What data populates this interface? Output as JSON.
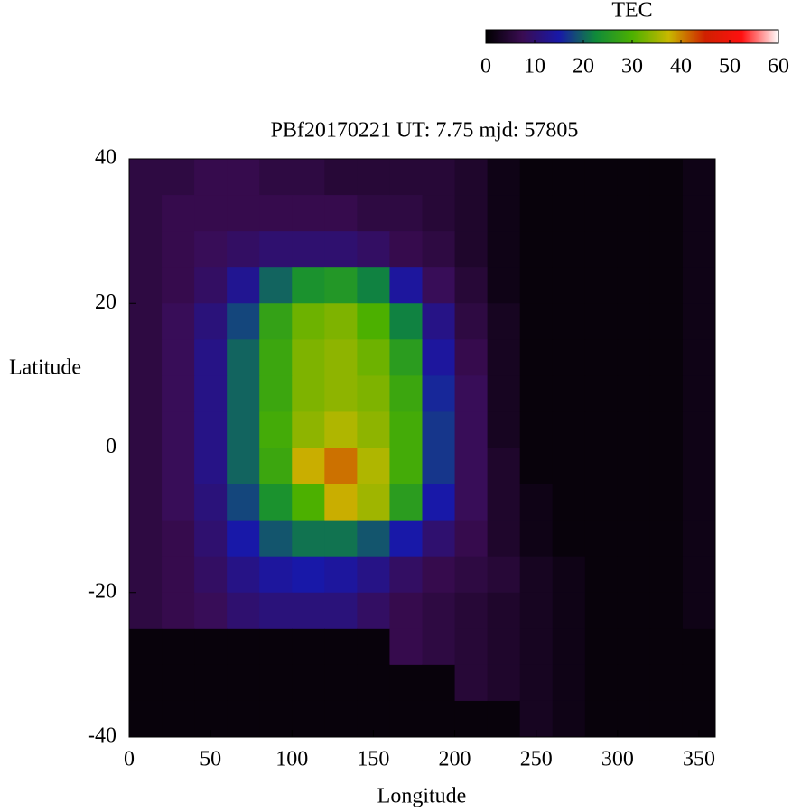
{
  "chart_data": {
    "type": "heatmap",
    "title": "PBf20170221  UT: 7.75  mjd: 57805",
    "xlabel": "Longitude",
    "ylabel": "Latitude",
    "colorbar_label": "TEC",
    "x": [
      10,
      30,
      50,
      70,
      90,
      110,
      130,
      150,
      170,
      190,
      210,
      230,
      250,
      270,
      290,
      310,
      330,
      350
    ],
    "y": [
      37.5,
      32.5,
      27.5,
      22.5,
      17.5,
      12.5,
      7.5,
      2.5,
      -2.5,
      -7.5,
      -12.5,
      -17.5,
      -22.5,
      -27.5,
      -32.5,
      -37.5
    ],
    "z": [
      [
        6,
        6,
        7,
        7,
        6,
        6,
        5,
        5,
        5,
        5,
        4,
        2,
        1,
        1,
        1,
        1,
        1,
        2
      ],
      [
        6,
        7,
        7,
        7,
        7,
        7,
        7,
        6,
        6,
        5,
        4,
        2,
        1,
        1,
        1,
        1,
        1,
        2
      ],
      [
        6,
        7,
        8,
        9,
        10,
        10,
        10,
        9,
        7,
        6,
        4,
        2,
        1,
        1,
        1,
        1,
        1,
        2
      ],
      [
        6,
        7,
        9,
        13,
        20,
        24,
        25,
        22,
        14,
        8,
        5,
        2,
        1,
        1,
        1,
        1,
        1,
        2
      ],
      [
        6,
        8,
        11,
        18,
        27,
        32,
        33,
        30,
        22,
        12,
        6,
        3,
        1,
        1,
        1,
        1,
        1,
        2
      ],
      [
        6,
        8,
        12,
        20,
        28,
        33,
        34,
        32,
        26,
        14,
        7,
        3,
        1,
        1,
        1,
        1,
        1,
        2
      ],
      [
        6,
        8,
        12,
        20,
        28,
        33,
        34,
        33,
        28,
        16,
        8,
        3,
        1,
        1,
        1,
        1,
        1,
        2
      ],
      [
        6,
        8,
        12,
        20,
        29,
        34,
        36,
        34,
        29,
        17,
        8,
        3,
        1,
        1,
        1,
        1,
        1,
        2
      ],
      [
        6,
        8,
        12,
        20,
        28,
        38,
        41,
        36,
        29,
        17,
        8,
        4,
        1,
        1,
        1,
        1,
        1,
        2
      ],
      [
        6,
        8,
        11,
        18,
        24,
        30,
        38,
        35,
        26,
        15,
        8,
        4,
        2,
        1,
        1,
        1,
        1,
        2
      ],
      [
        6,
        7,
        10,
        15,
        19,
        21,
        21,
        19,
        15,
        10,
        7,
        4,
        2,
        1,
        1,
        1,
        1,
        2
      ],
      [
        6,
        7,
        9,
        12,
        14,
        15,
        14,
        12,
        9,
        7,
        6,
        5,
        3,
        2,
        1,
        1,
        1,
        2
      ],
      [
        6,
        7,
        8,
        10,
        11,
        11,
        11,
        9,
        7,
        6,
        5,
        4,
        3,
        2,
        1,
        1,
        1,
        2
      ],
      [
        1,
        1,
        1,
        1,
        1,
        1,
        1,
        1,
        7,
        6,
        5,
        4,
        3,
        2,
        1,
        1,
        1,
        1
      ],
      [
        1,
        1,
        1,
        1,
        1,
        1,
        1,
        1,
        1,
        1,
        5,
        4,
        3,
        2,
        1,
        1,
        1,
        1
      ],
      [
        1,
        1,
        1,
        1,
        1,
        1,
        1,
        1,
        1,
        1,
        1,
        1,
        3,
        2,
        1,
        1,
        1,
        1
      ]
    ],
    "cell_width": 20,
    "cell_height": 5,
    "xlim": [
      0,
      360
    ],
    "ylim": [
      -40,
      40
    ],
    "xticks": [
      0,
      50,
      100,
      150,
      200,
      250,
      300,
      350
    ],
    "yticks": [
      -40,
      -20,
      0,
      20,
      40
    ],
    "zlim": [
      0,
      60
    ],
    "zticks": [
      0,
      10,
      20,
      30,
      40,
      50,
      60
    ],
    "colormap": [
      "#000000",
      "#3a0c52",
      "#1818a8",
      "#0f8a3a",
      "#4cb000",
      "#c8b800",
      "#d02000",
      "#ff1010",
      "#ffffff"
    ]
  }
}
